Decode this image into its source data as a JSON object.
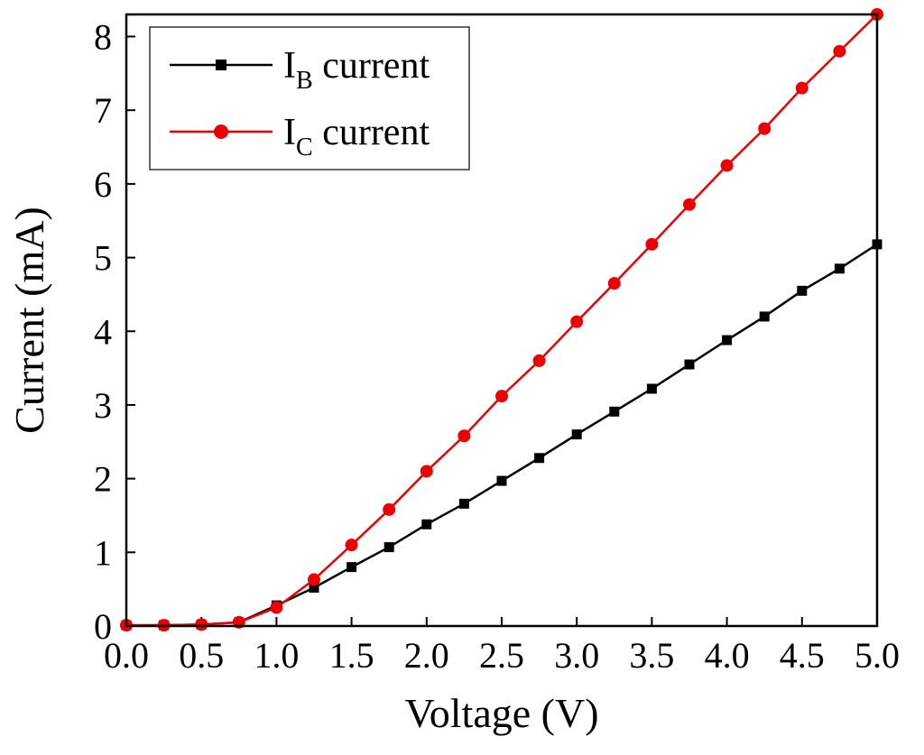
{
  "chart_data": {
    "type": "line",
    "title": "",
    "xlabel": "Voltage (V)",
    "ylabel": "Current (mA)",
    "xlim": [
      0,
      5
    ],
    "ylim": [
      0,
      8.3
    ],
    "grid": false,
    "legend_position": "top-left",
    "x_ticks": [
      0.0,
      0.5,
      1.0,
      1.5,
      2.0,
      2.5,
      3.0,
      3.5,
      4.0,
      4.5,
      5.0
    ],
    "x_tick_labels": [
      "0.0",
      "0.5",
      "1.0",
      "1.5",
      "2.0",
      "2.5",
      "3.0",
      "3.5",
      "4.0",
      "4.5",
      "5.0"
    ],
    "y_ticks": [
      0,
      1,
      2,
      3,
      4,
      5,
      6,
      7,
      8
    ],
    "y_tick_labels": [
      "0",
      "1",
      "2",
      "3",
      "4",
      "5",
      "6",
      "7",
      "8"
    ],
    "x": [
      0.0,
      0.25,
      0.5,
      0.75,
      1.0,
      1.25,
      1.5,
      1.75,
      2.0,
      2.25,
      2.5,
      2.75,
      3.0,
      3.25,
      3.5,
      3.75,
      4.0,
      4.25,
      4.5,
      4.75,
      5.0
    ],
    "series": [
      {
        "name": "I_B current",
        "label_prefix": "I",
        "label_sub": "B",
        "label_rest": " current",
        "color": "#000000",
        "marker": "square",
        "values": [
          0.01,
          0.01,
          0.02,
          0.05,
          0.28,
          0.52,
          0.8,
          1.07,
          1.38,
          1.66,
          1.97,
          2.28,
          2.6,
          2.91,
          3.22,
          3.55,
          3.88,
          4.2,
          4.55,
          4.85,
          5.18
        ]
      },
      {
        "name": "I_C current",
        "label_prefix": "I",
        "label_sub": "C",
        "label_rest": " current",
        "color": "#ee0000",
        "marker": "circle",
        "values": [
          0.01,
          0.01,
          0.02,
          0.05,
          0.25,
          0.63,
          1.1,
          1.58,
          2.1,
          2.58,
          3.12,
          3.6,
          4.13,
          4.65,
          5.18,
          5.72,
          6.25,
          6.75,
          7.3,
          7.8,
          8.3
        ]
      }
    ]
  }
}
